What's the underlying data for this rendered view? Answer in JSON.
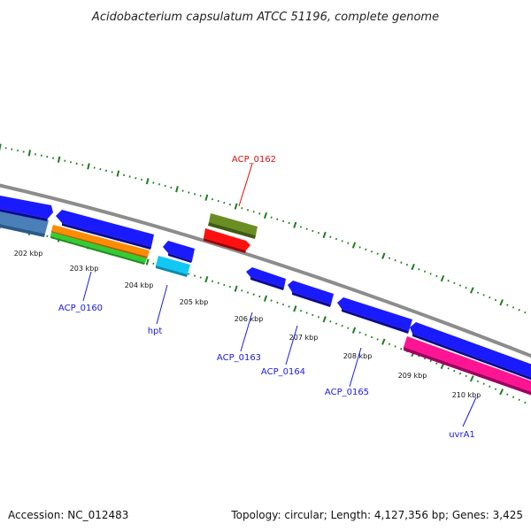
{
  "title": "Acidobacterium capsulatum ATCC 51196, complete genome",
  "footer": {
    "accession": "Accession: NC_012483",
    "topology": "Topology: circular; Length: 4,127,356 bp; Genes: 3,425"
  },
  "colors": {
    "backbone": "#8c8c8c",
    "tick": "#1e7d1e",
    "cds": "#1a1aff",
    "label_default": "#1a1ae0",
    "label_red": "#e01010"
  },
  "scale": {
    "labels": [
      "202 kbp",
      "203 kbp",
      "204 kbp",
      "205 kbp",
      "206 kbp",
      "207 kbp",
      "208 kbp",
      "209 kbp",
      "210 kbp"
    ]
  },
  "gene_labels": [
    {
      "name": "ACP_0162",
      "color": "#e01010"
    },
    {
      "name": "ACP_0160",
      "color": "#1a1ae0"
    },
    {
      "name": "hpt",
      "color": "#1a1ae0"
    },
    {
      "name": "ACP_0163",
      "color": "#1a1ae0"
    },
    {
      "name": "ACP_0164",
      "color": "#1a1ae0"
    },
    {
      "name": "ACP_0165",
      "color": "#1a1ae0"
    },
    {
      "name": "uvrA1",
      "color": "#1a1ae0"
    }
  ],
  "features": [
    {
      "name": "feature-steelblue",
      "color": "#4a7fb8"
    },
    {
      "name": "feature-blue-1",
      "color": "#1a1aff"
    },
    {
      "name": "feature-blue-2",
      "color": "#1a1aff"
    },
    {
      "name": "feature-orange",
      "color": "#ff8c00"
    },
    {
      "name": "feature-green",
      "color": "#33cc33"
    },
    {
      "name": "feature-blue-3",
      "color": "#1a1aff"
    },
    {
      "name": "feature-cyan",
      "color": "#11c8f5"
    },
    {
      "name": "feature-olive",
      "color": "#6b8e23"
    },
    {
      "name": "feature-red",
      "color": "#ff1010"
    },
    {
      "name": "feature-blue-4",
      "color": "#1a1aff"
    },
    {
      "name": "feature-blue-5",
      "color": "#1a1aff"
    },
    {
      "name": "feature-blue-6",
      "color": "#1a1aff"
    },
    {
      "name": "feature-blue-7",
      "color": "#1a1aff"
    },
    {
      "name": "feature-blue-8",
      "color": "#1a1aff"
    },
    {
      "name": "feature-magenta",
      "color": "#ff1493"
    }
  ]
}
